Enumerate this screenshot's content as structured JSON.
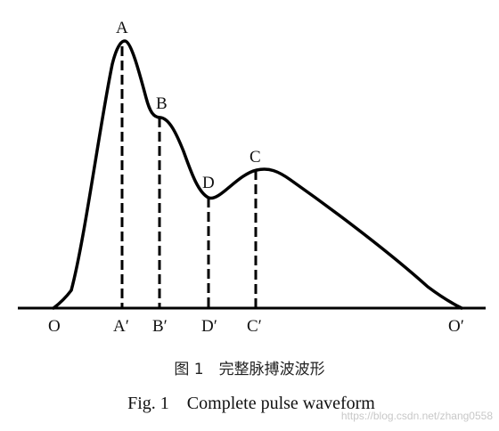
{
  "points": {
    "O": "O",
    "A": "A",
    "B": "B",
    "C": "C",
    "D": "D",
    "A_prime": "A′",
    "B_prime": "B′",
    "C_prime": "C′",
    "D_prime": "D′",
    "O_prime": "O′"
  },
  "caption": {
    "cn": "图 1　完整脉搏波波形",
    "en": "Fig. 1    Complete pulse waveform"
  },
  "watermark": "https://blog.csdn.net/zhang0558"
}
